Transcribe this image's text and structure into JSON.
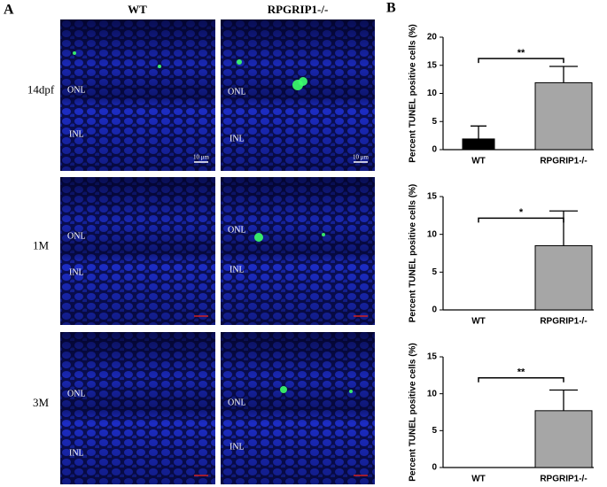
{
  "panel_labels": [
    "A",
    "B"
  ],
  "panel_a": {
    "columns": [
      "WT",
      "RPGRIP1-/-"
    ],
    "rows": [
      "14dpf",
      "1M",
      "3M"
    ],
    "layers": [
      "ONL",
      "INL"
    ],
    "scale_bar": "10 μm"
  },
  "chart_data": [
    {
      "type": "bar",
      "y_label": "Percent TUNEL positive cells (%)",
      "categories": [
        "WT",
        "RPGRIP1-/-"
      ],
      "values": [
        1.9,
        11.9
      ],
      "errors": [
        2.3,
        2.9
      ],
      "colors": [
        "#000000",
        "#a6a6a6"
      ],
      "ylim": [
        0,
        20
      ],
      "yticks": [
        0,
        5,
        10,
        15,
        20
      ],
      "annotation": "**"
    },
    {
      "type": "bar",
      "y_label": "Percent TUNEL positive cells (%)",
      "categories": [
        "WT",
        "RPGRIP1-/-"
      ],
      "values": [
        0,
        8.5
      ],
      "errors": [
        0,
        4.6
      ],
      "colors": [
        "#000000",
        "#a6a6a6"
      ],
      "ylim": [
        0,
        15
      ],
      "yticks": [
        0,
        5,
        10,
        15
      ],
      "annotation": "*"
    },
    {
      "type": "bar",
      "y_label": "Percent TUNEL positive cells (%)",
      "categories": [
        "WT",
        "RPGRIP1-/-"
      ],
      "values": [
        0,
        7.7
      ],
      "errors": [
        0,
        2.8
      ],
      "colors": [
        "#000000",
        "#a6a6a6"
      ],
      "ylim": [
        0,
        15
      ],
      "yticks": [
        0,
        5,
        10,
        15
      ],
      "annotation": "**"
    }
  ]
}
